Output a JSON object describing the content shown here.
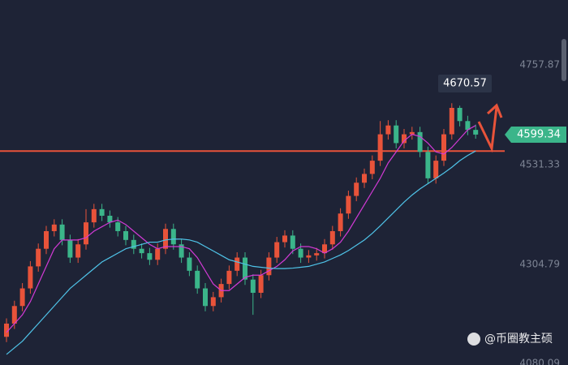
{
  "chart_data": {
    "type": "candlestick",
    "ylim": [
      4076,
      4905
    ],
    "yticks": [
      4757.87,
      4531.33,
      4304.79,
      4080.09
    ],
    "up_color": "#e8533a",
    "down_color": "#3bb58a",
    "open": [
      4140,
      4170,
      4210,
      4250,
      4300,
      4340,
      4380,
      4395,
      4360,
      4320,
      4350,
      4400,
      4430,
      4415,
      4400,
      4380,
      4360,
      4340,
      4330,
      4315,
      4340,
      4385,
      4350,
      4320,
      4290,
      4250,
      4210,
      4230,
      4260,
      4290,
      4320,
      4270,
      4240,
      4280,
      4320,
      4355,
      4370,
      4340,
      4320,
      4325,
      4330,
      4350,
      4380,
      4420,
      4460,
      4490,
      4510,
      4540,
      4600,
      4620,
      4580,
      4600,
      4605,
      4560,
      4500,
      4540,
      4600,
      4660,
      4630,
      4610
    ],
    "high": [
      4182,
      4222,
      4262,
      4312,
      4352,
      4392,
      4407,
      4407,
      4372,
      4362,
      4430,
      4442,
      4442,
      4427,
      4412,
      4392,
      4372,
      4352,
      4342,
      4352,
      4397,
      4397,
      4362,
      4332,
      4302,
      4262,
      4242,
      4272,
      4302,
      4332,
      4332,
      4282,
      4292,
      4332,
      4367,
      4382,
      4382,
      4352,
      4337,
      4342,
      4362,
      4392,
      4432,
      4472,
      4502,
      4522,
      4552,
      4630,
      4632,
      4632,
      4612,
      4617,
      4617,
      4572,
      4552,
      4612,
      4670.57,
      4665,
      4642,
      4622
    ],
    "low": [
      4128,
      4158,
      4198,
      4238,
      4288,
      4328,
      4368,
      4348,
      4308,
      4308,
      4338,
      4388,
      4403,
      4388,
      4368,
      4348,
      4328,
      4318,
      4303,
      4303,
      4328,
      4338,
      4308,
      4278,
      4238,
      4198,
      4198,
      4218,
      4248,
      4278,
      4258,
      4190,
      4228,
      4268,
      4308,
      4343,
      4328,
      4308,
      4308,
      4313,
      4318,
      4338,
      4368,
      4408,
      4448,
      4478,
      4498,
      4528,
      4588,
      4568,
      4568,
      4588,
      4548,
      4488,
      4488,
      4528,
      4588,
      4618,
      4598,
      4590
    ],
    "close": [
      4170,
      4210,
      4250,
      4300,
      4340,
      4380,
      4395,
      4360,
      4320,
      4350,
      4400,
      4430,
      4415,
      4400,
      4380,
      4360,
      4340,
      4330,
      4315,
      4340,
      4385,
      4350,
      4320,
      4290,
      4250,
      4210,
      4230,
      4260,
      4290,
      4320,
      4270,
      4240,
      4280,
      4320,
      4355,
      4370,
      4340,
      4320,
      4325,
      4330,
      4350,
      4380,
      4420,
      4460,
      4490,
      4510,
      4540,
      4600,
      4620,
      4580,
      4600,
      4605,
      4560,
      4500,
      4540,
      4600,
      4660,
      4630,
      4610,
      4599.34
    ],
    "moving_averages": [
      {
        "color": "#d23ad6",
        "values": [
          4150,
          4170,
          4190,
          4220,
          4260,
          4300,
          4340,
          4360,
          4360,
          4360,
          4365,
          4380,
          4390,
          4400,
          4405,
          4395,
          4380,
          4365,
          4350,
          4340,
          4345,
          4345,
          4345,
          4340,
          4320,
          4290,
          4260,
          4245,
          4245,
          4260,
          4275,
          4280,
          4280,
          4290,
          4300,
          4315,
          4335,
          4345,
          4345,
          4340,
          4330,
          4340,
          4355,
          4380,
          4410,
          4440,
          4470,
          4500,
          4535,
          4560,
          4585,
          4600,
          4595,
          4580,
          4560,
          4555,
          4570,
          4590,
          4610,
          4620
        ]
      },
      {
        "color": "#4fc3e8",
        "values": [
          4100,
          4115,
          4130,
          4150,
          4170,
          4190,
          4210,
          4230,
          4250,
          4265,
          4280,
          4295,
          4310,
          4320,
          4330,
          4340,
          4345,
          4350,
          4355,
          4355,
          4360,
          4362,
          4362,
          4360,
          4355,
          4345,
          4335,
          4325,
          4315,
          4310,
          4305,
          4300,
          4298,
          4296,
          4295,
          4295,
          4296,
          4298,
          4300,
          4305,
          4310,
          4318,
          4326,
          4336,
          4348,
          4360,
          4375,
          4392,
          4410,
          4428,
          4446,
          4462,
          4476,
          4488,
          4500,
          4512,
          4525,
          4540,
          4552,
          4562
        ]
      }
    ],
    "level_line": 4562,
    "level_color": "#e8533a",
    "high_label": "4670.57",
    "last_price_label": "4599.34",
    "watermark": "@币圈教主硕"
  }
}
